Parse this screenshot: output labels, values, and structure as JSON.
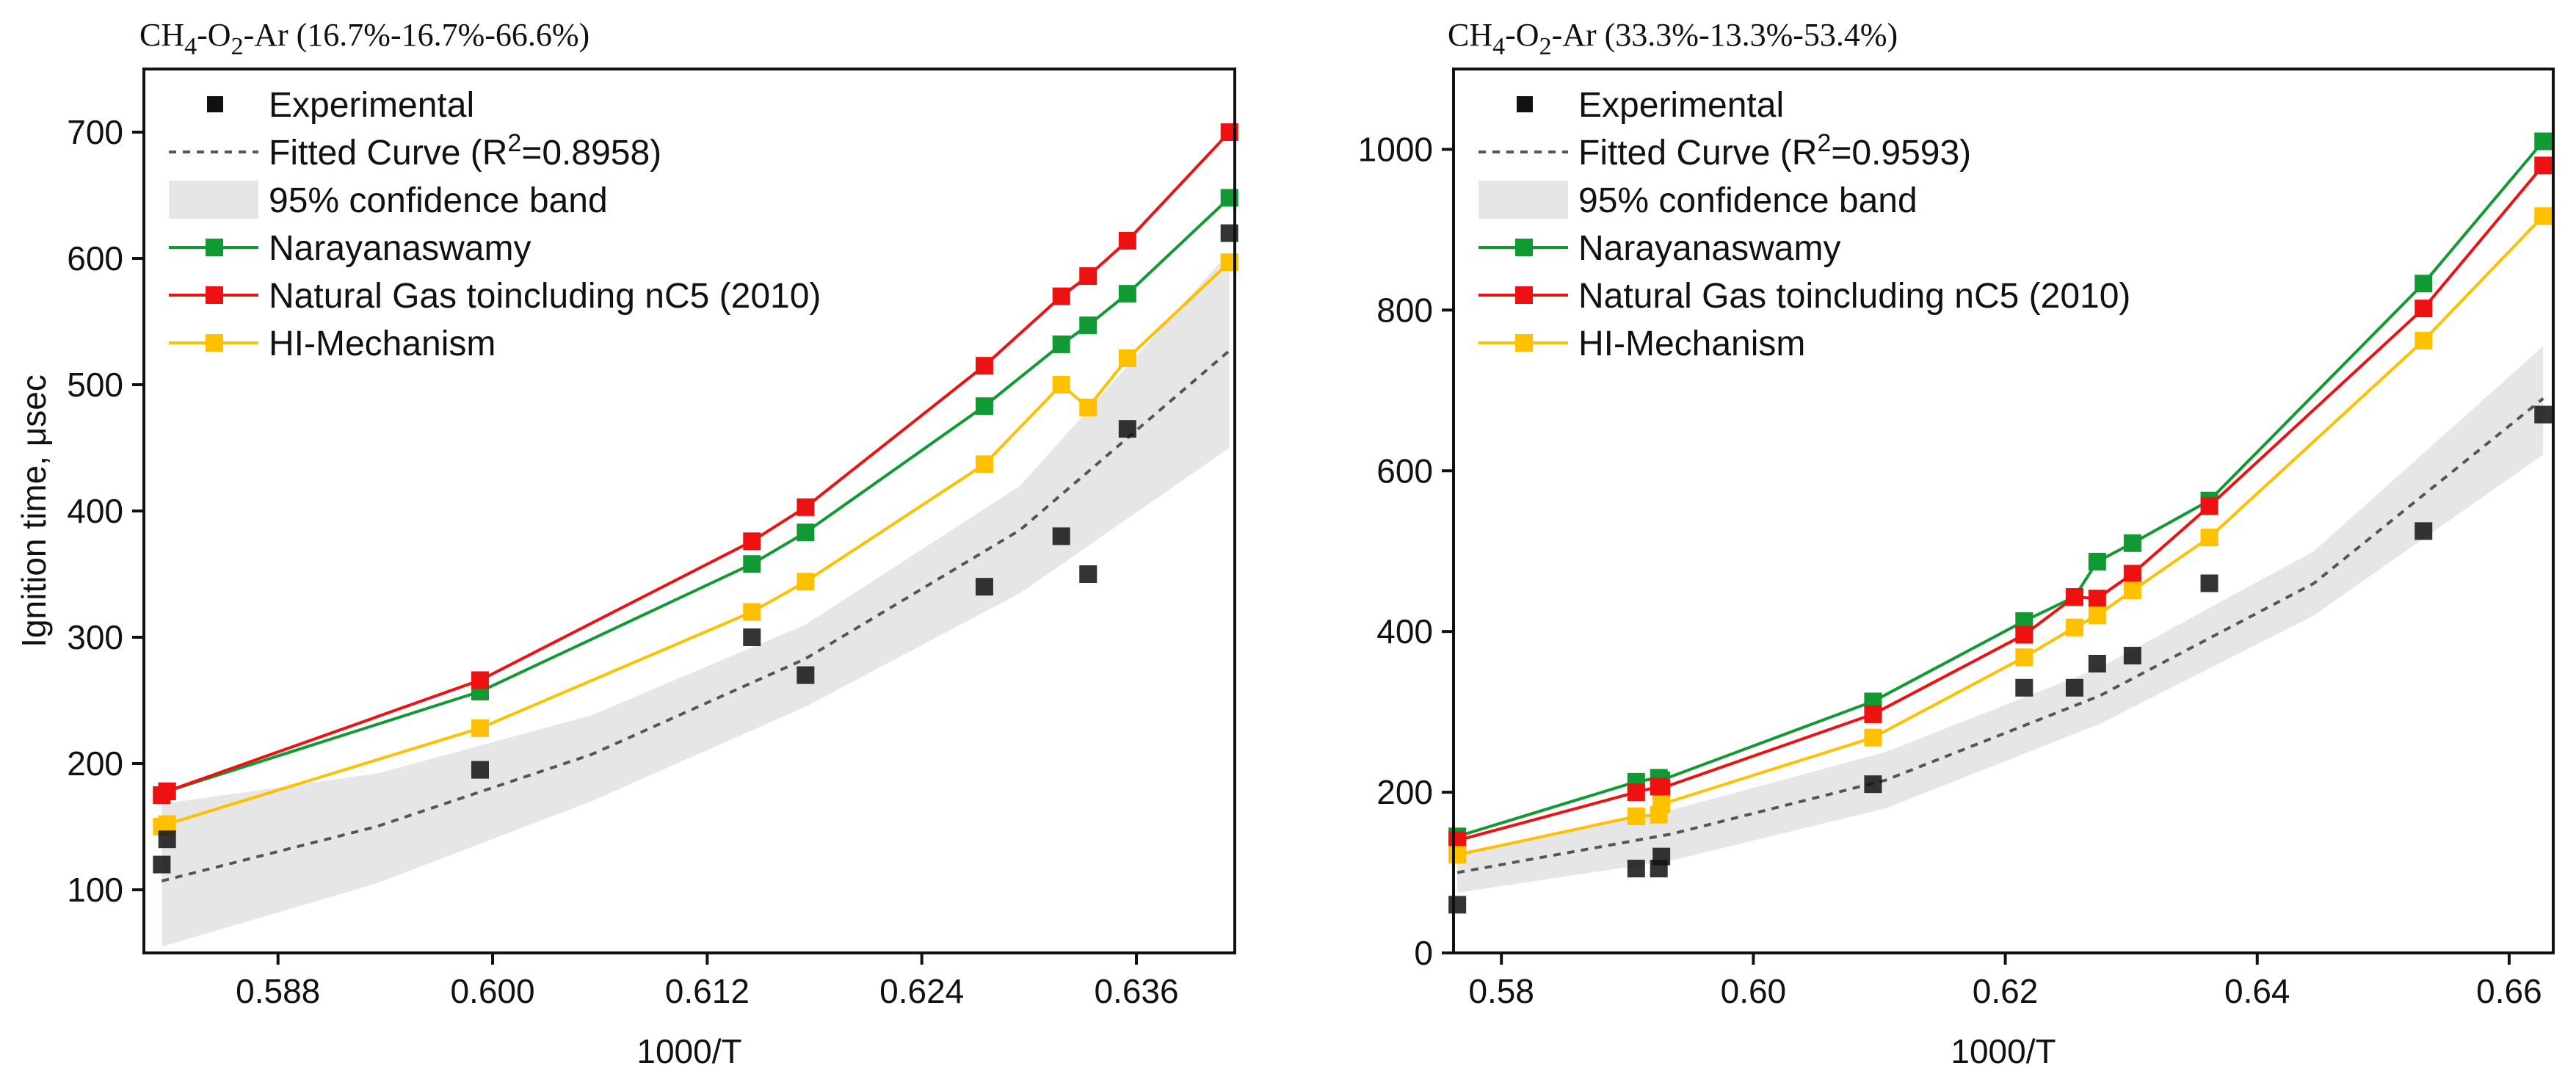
{
  "colors": {
    "experimental": "#111111",
    "fitted": "#555555",
    "band": "#e6e6e6",
    "narayanaswamy": "#119933",
    "natural_gas": "#ee1111",
    "hi_mechanism": "#ffc000"
  },
  "chart_data": [
    {
      "type": "scatter",
      "title_parts": [
        "CH",
        "4",
        "-O",
        "2",
        "-Ar (16.7%-16.7%-66.6%)"
      ],
      "xlabel": "1000/T",
      "ylabel": "Ignition time, μsec",
      "xlim": [
        0.5805,
        0.6415
      ],
      "ylim": [
        50,
        750
      ],
      "xticks": [
        0.588,
        0.6,
        0.612,
        0.624,
        0.636
      ],
      "xtick_labels": [
        "0.588",
        "0.600",
        "0.612",
        "0.624",
        "0.636"
      ],
      "yticks": [
        100,
        200,
        300,
        400,
        500,
        600,
        700
      ],
      "ytick_labels": [
        "100",
        "200",
        "300",
        "400",
        "500",
        "600",
        "700"
      ],
      "legend": {
        "experimental": "Experimental",
        "fitted_prefix": "Fitted Curve (R",
        "fitted_sup": "2",
        "fitted_suffix": "=0.8958)",
        "band": "95% confidence band",
        "narayanaswamy": "Narayanaswamy",
        "natural_gas": "Natural Gas toincluding nC5 (2010)",
        "hi_mechanism": "HI-Mechanism"
      },
      "experimental": {
        "x": [
          0.5815,
          0.5818,
          0.5993,
          0.6145,
          0.6175,
          0.6275,
          0.6318,
          0.6333,
          0.6355,
          0.6412
        ],
        "y": [
          120,
          140,
          195,
          300,
          270,
          340,
          380,
          350,
          465,
          620
        ]
      },
      "fitted": {
        "x": [
          0.5815,
          0.5935,
          0.6055,
          0.6175,
          0.6295,
          0.6412
        ],
        "y": [
          107,
          150,
          207,
          283,
          385,
          527
        ]
      },
      "band": {
        "x": [
          0.5815,
          0.5935,
          0.6055,
          0.6175,
          0.6295,
          0.6412
        ],
        "upper": [
          168,
          192,
          238,
          310,
          420,
          605
        ],
        "lower": [
          55,
          105,
          170,
          245,
          335,
          450
        ]
      },
      "series": [
        {
          "key": "narayanaswamy",
          "name": "Narayanaswamy",
          "x": [
            0.5815,
            0.5818,
            0.5993,
            0.6145,
            0.6175,
            0.6275,
            0.6318,
            0.6333,
            0.6355,
            0.6412
          ],
          "y": [
            175,
            178,
            257,
            358,
            383,
            483,
            532,
            547,
            572,
            648
          ]
        },
        {
          "key": "natural_gas",
          "name": "Natural Gas toincluding nC5 (2010)",
          "x": [
            0.5815,
            0.5818,
            0.5993,
            0.6145,
            0.6175,
            0.6275,
            0.6318,
            0.6333,
            0.6355,
            0.6412
          ],
          "y": [
            175,
            178,
            266,
            376,
            403,
            515,
            570,
            586,
            614,
            700
          ]
        },
        {
          "key": "hi_mechanism",
          "name": "HI-Mechanism",
          "x": [
            0.5815,
            0.5818,
            0.5993,
            0.6145,
            0.6175,
            0.6275,
            0.6318,
            0.6333,
            0.6355,
            0.6412
          ],
          "y": [
            150,
            152,
            228,
            320,
            344,
            437,
            500,
            482,
            521,
            597
          ]
        }
      ]
    },
    {
      "type": "scatter",
      "title_parts": [
        "CH",
        "4",
        "-O",
        "2",
        "-Ar (33.3%-13.3%-53.4%)"
      ],
      "xlabel": "1000/T",
      "ylabel": "",
      "xlim": [
        0.5762,
        0.6635
      ],
      "ylim": [
        0,
        1100
      ],
      "xticks": [
        0.58,
        0.6,
        0.62,
        0.64,
        0.66
      ],
      "xtick_labels": [
        "0.58",
        "0.60",
        "0.62",
        "0.64",
        "0.66"
      ],
      "yticks": [
        0,
        200,
        400,
        600,
        800,
        1000
      ],
      "ytick_labels": [
        "0",
        "200",
        "400",
        "600",
        "800",
        "1000"
      ],
      "legend": {
        "experimental": "Experimental",
        "fitted_prefix": "Fitted Curve (R",
        "fitted_sup": "2",
        "fitted_suffix": "=0.9593)",
        "band": "95% confidence band",
        "narayanaswamy": "Narayanaswamy",
        "natural_gas": "Natural Gas toincluding nC5 (2010)",
        "hi_mechanism": "HI-Mechanism"
      },
      "experimental": {
        "x": [
          0.5765,
          0.5907,
          0.5925,
          0.5927,
          0.6095,
          0.6215,
          0.6255,
          0.6273,
          0.6301,
          0.6362,
          0.6532,
          0.6627
        ],
        "y": [
          60,
          105,
          105,
          120,
          210,
          330,
          330,
          360,
          370,
          460,
          525,
          670
        ]
      },
      "fitted": {
        "x": [
          0.5765,
          0.5935,
          0.6105,
          0.6275,
          0.6445,
          0.6627
        ],
        "y": [
          100,
          148,
          215,
          320,
          460,
          690
        ]
      },
      "band": {
        "x": [
          0.5765,
          0.5935,
          0.6105,
          0.6275,
          0.6445,
          0.6627
        ],
        "upper": [
          125,
          178,
          250,
          355,
          500,
          755
        ],
        "lower": [
          75,
          115,
          180,
          285,
          420,
          620
        ]
      },
      "series": [
        {
          "key": "narayanaswamy",
          "name": "Narayanaswamy",
          "x": [
            0.5765,
            0.5907,
            0.5925,
            0.5927,
            0.6095,
            0.6215,
            0.6255,
            0.6273,
            0.6301,
            0.6362,
            0.6532,
            0.6627
          ],
          "y": [
            145,
            213,
            218,
            215,
            313,
            413,
            443,
            487,
            510,
            563,
            833,
            1010
          ]
        },
        {
          "key": "natural_gas",
          "name": "Natural Gas toincluding nC5 (2010)",
          "x": [
            0.5765,
            0.5907,
            0.5925,
            0.5927,
            0.6095,
            0.6215,
            0.6255,
            0.6273,
            0.6301,
            0.6362,
            0.6532,
            0.6627
          ],
          "y": [
            140,
            200,
            207,
            205,
            297,
            396,
            443,
            441,
            472,
            556,
            802,
            980
          ]
        },
        {
          "key": "hi_mechanism",
          "name": "HI-Mechanism",
          "x": [
            0.5765,
            0.5907,
            0.5925,
            0.5927,
            0.6095,
            0.6215,
            0.6255,
            0.6273,
            0.6301,
            0.6362,
            0.6532,
            0.6627
          ],
          "y": [
            122,
            170,
            172,
            185,
            268,
            368,
            405,
            420,
            451,
            517,
            762,
            917
          ]
        }
      ]
    }
  ]
}
